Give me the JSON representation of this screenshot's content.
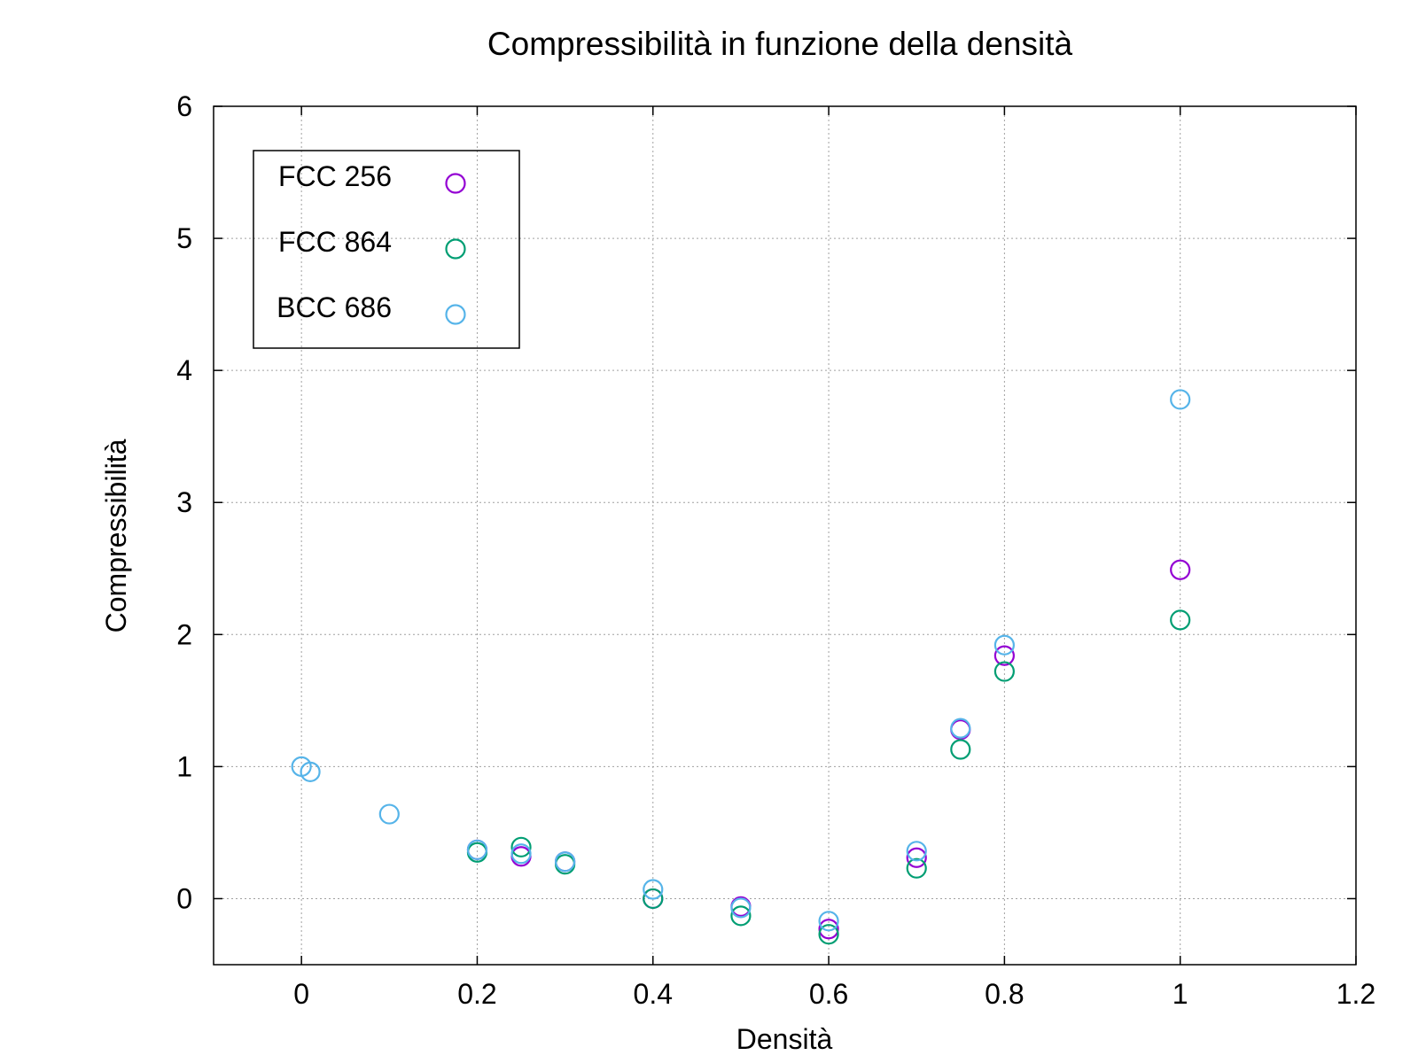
{
  "chart_data": {
    "type": "scatter",
    "title": "Compressibilità in funzione della densità",
    "xlabel": "Densità",
    "ylabel": "Compressibilità",
    "xlim": [
      -0.1,
      1.2
    ],
    "ylim": [
      -0.5,
      6
    ],
    "xticks": [
      "0",
      "0.2",
      "0.4",
      "0.6",
      "0.8",
      "1",
      "1.2"
    ],
    "xtick_values": [
      0,
      0.2,
      0.4,
      0.6,
      0.8,
      1,
      1.2
    ],
    "yticks": [
      "0",
      "1",
      "2",
      "3",
      "4",
      "5",
      "6"
    ],
    "ytick_values": [
      0,
      1,
      2,
      3,
      4,
      5,
      6
    ],
    "grid": true,
    "legend_position": "top-left",
    "marker": "open-circle",
    "series": [
      {
        "name": "FCC 256",
        "color": "#9400d3",
        "x": [
          0.2,
          0.25,
          0.3,
          0.4,
          0.5,
          0.6,
          0.7,
          0.75,
          0.8,
          1.0
        ],
        "y": [
          0.37,
          0.32,
          0.28,
          0.0,
          -0.06,
          -0.23,
          0.31,
          1.28,
          1.84,
          2.49
        ]
      },
      {
        "name": "FCC 864",
        "color": "#009e73",
        "x": [
          0.2,
          0.25,
          0.3,
          0.4,
          0.5,
          0.6,
          0.7,
          0.75,
          0.8,
          1.0
        ],
        "y": [
          0.35,
          0.39,
          0.26,
          0.0,
          -0.13,
          -0.27,
          0.23,
          1.13,
          1.72,
          2.11
        ]
      },
      {
        "name": "BCC 686",
        "color": "#56b4e9",
        "x": [
          0.0,
          0.01,
          0.1,
          0.2,
          0.25,
          0.3,
          0.4,
          0.5,
          0.6,
          0.7,
          0.75,
          0.8,
          1.0
        ],
        "y": [
          1.0,
          0.96,
          0.64,
          0.37,
          0.34,
          0.28,
          0.07,
          -0.07,
          -0.17,
          0.36,
          1.29,
          1.92,
          3.78
        ]
      }
    ]
  }
}
